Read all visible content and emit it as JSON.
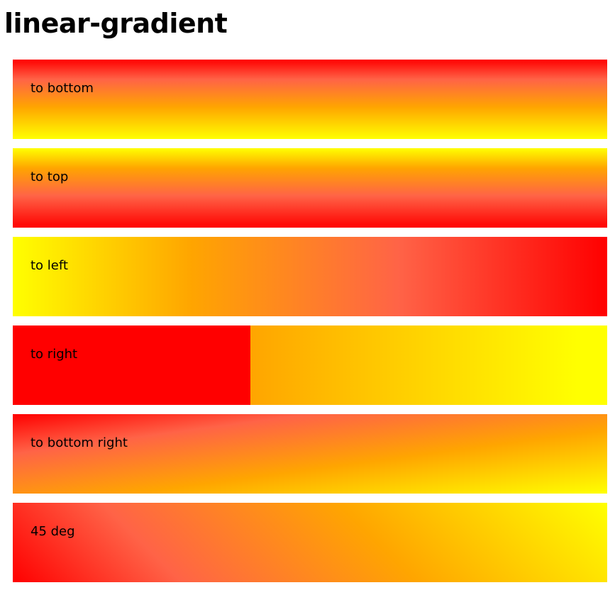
{
  "page": {
    "title": "linear-gradient"
  },
  "colors": {
    "red": "#ff0000",
    "tomato": "#ff6347",
    "orange": "#ffa500",
    "yellow": "#ffff00"
  },
  "boxes": [
    {
      "label": "to bottom"
    },
    {
      "label": "to top"
    },
    {
      "label": "to left"
    },
    {
      "label": "to right"
    },
    {
      "label": "to bottom right"
    },
    {
      "label": "45 deg"
    }
  ]
}
